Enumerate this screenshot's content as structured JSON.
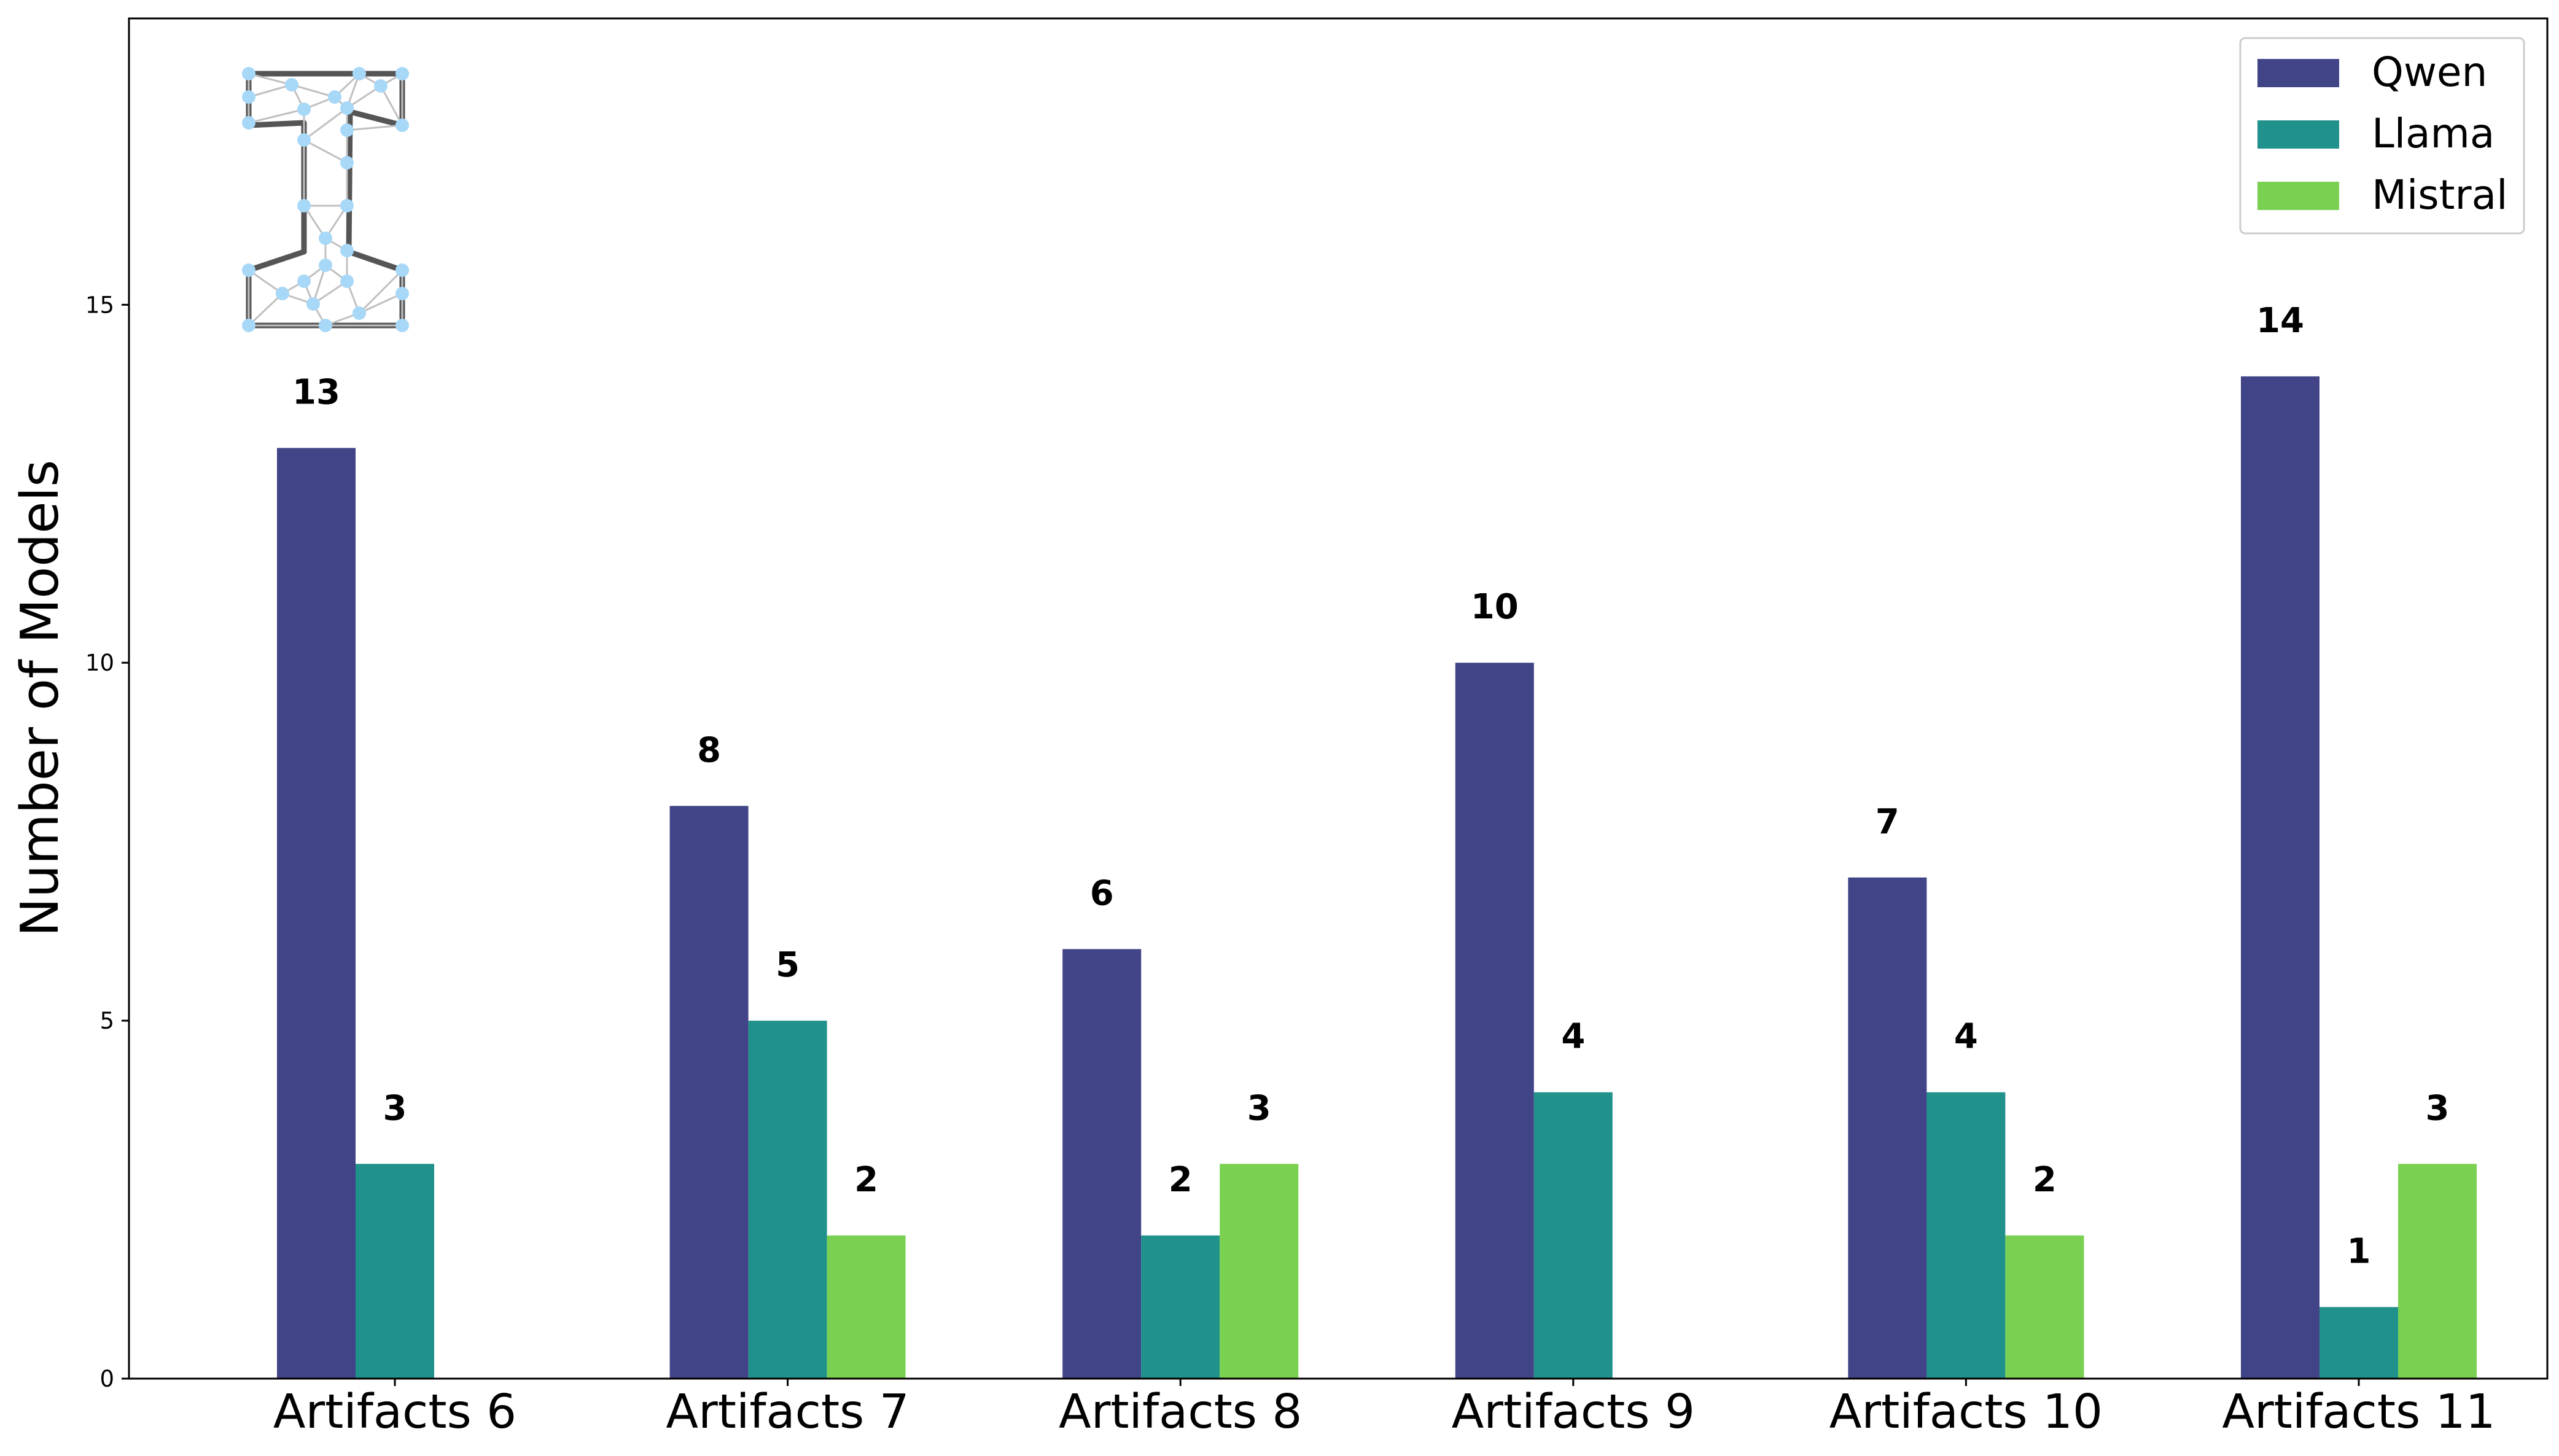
{
  "chart_data": {
    "type": "bar",
    "title": "",
    "xlabel": "",
    "ylabel": "Number of Models",
    "categories": [
      "Artifacts 6",
      "Artifacts 7",
      "Artifacts 8",
      "Artifacts 9",
      "Artifacts 10",
      "Artifacts 11"
    ],
    "series": [
      {
        "name": "Qwen",
        "color": "#414487",
        "values": [
          13,
          8,
          6,
          10,
          7,
          14
        ]
      },
      {
        "name": "Llama",
        "color": "#21918c",
        "values": [
          3,
          5,
          2,
          4,
          4,
          1
        ]
      },
      {
        "name": "Mistral",
        "color": "#7ad151",
        "values": [
          0,
          2,
          3,
          0,
          2,
          3
        ]
      }
    ],
    "yticks": [
      0,
      5,
      10,
      15
    ],
    "ylim": [
      0,
      19
    ],
    "grid": false,
    "legend_position": "top-right",
    "logo": "network-graph-logo"
  }
}
